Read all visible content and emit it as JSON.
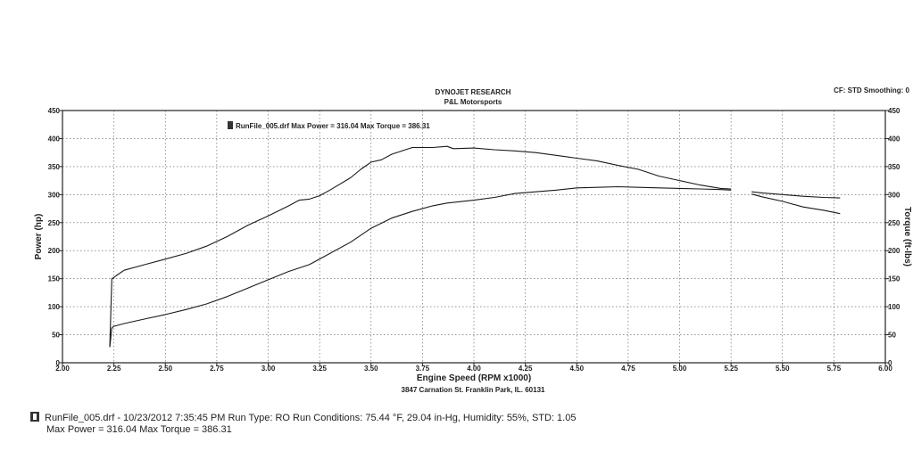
{
  "header": {
    "title": "DYNOJET RESEARCH",
    "subtitle": "P&L Motorsports",
    "cf_smoothing": "CF: STD  Smoothing: 0"
  },
  "address": "3847 Carnation St.  Franklin Park, IL.  60131",
  "footer": {
    "line1": "RunFile_005.drf - 10/23/2012 7:35:45 PM  Run Type: RO  Run Conditions: 75.44 °F, 29.04 in-Hg,  Humidity:  55%, STD: 1.05",
    "line2": "Max Power = 316.04  Max Torque = 386.31"
  },
  "chart_data": {
    "type": "line",
    "xlabel": "Engine Speed (RPM x1000)",
    "ylabel": "Power (hp)",
    "y2label": "Torque (ft-lbs)",
    "xlim": [
      2.0,
      6.0
    ],
    "ylim": [
      0,
      450
    ],
    "y2lim": [
      0,
      450
    ],
    "x_ticks": [
      "2.00",
      "2.25",
      "2.50",
      "2.75",
      "3.00",
      "3.25",
      "3.50",
      "3.75",
      "4.00",
      "4.25",
      "4.50",
      "4.75",
      "5.00",
      "5.25",
      "5.50",
      "5.75",
      "6.00"
    ],
    "y_ticks": [
      "0",
      "50",
      "100",
      "150",
      "200",
      "250",
      "300",
      "350",
      "400",
      "450"
    ],
    "grid": true,
    "legend": {
      "position": "top-left",
      "text": "RunFile_005.drf Max Power = 316.04     Max Torque = 386.31"
    },
    "series": [
      {
        "name": "Torque",
        "x": [
          2.23,
          2.24,
          2.25,
          2.26,
          2.3,
          2.4,
          2.5,
          2.6,
          2.7,
          2.8,
          2.9,
          3.0,
          3.1,
          3.15,
          3.2,
          3.25,
          3.3,
          3.4,
          3.45,
          3.5,
          3.55,
          3.6,
          3.7,
          3.8,
          3.87,
          3.9,
          4.0,
          4.1,
          4.2,
          4.3,
          4.4,
          4.5,
          4.6,
          4.7,
          4.8,
          4.9,
          5.0,
          5.1,
          5.2,
          5.25,
          5.35,
          5.4,
          5.5,
          5.6,
          5.7,
          5.78
        ],
        "values": [
          28,
          150,
          152,
          155,
          165,
          175,
          185,
          195,
          208,
          225,
          245,
          262,
          280,
          290,
          292,
          298,
          308,
          330,
          345,
          358,
          362,
          372,
          384,
          384,
          386,
          382,
          383,
          380,
          378,
          375,
          370,
          365,
          360,
          352,
          345,
          333,
          325,
          317,
          311,
          310,
          301,
          296,
          288,
          278,
          272,
          266
        ]
      },
      {
        "name": "Power",
        "x": [
          2.23,
          2.24,
          2.25,
          2.3,
          2.4,
          2.5,
          2.6,
          2.7,
          2.8,
          2.9,
          3.0,
          3.1,
          3.2,
          3.3,
          3.4,
          3.5,
          3.6,
          3.7,
          3.8,
          3.87,
          3.9,
          4.0,
          4.1,
          4.2,
          4.3,
          4.4,
          4.5,
          4.6,
          4.7,
          4.8,
          4.9,
          5.0,
          5.1,
          5.2,
          5.25,
          5.35,
          5.4,
          5.5,
          5.6,
          5.7,
          5.78
        ],
        "values": [
          28,
          62,
          65,
          70,
          78,
          86,
          95,
          105,
          118,
          133,
          148,
          163,
          175,
          195,
          215,
          240,
          258,
          270,
          280,
          285,
          286,
          290,
          295,
          302,
          305,
          308,
          312,
          313,
          314,
          313,
          312,
          311,
          310,
          309,
          308,
          305,
          303,
          300,
          297,
          295,
          294
        ]
      }
    ]
  }
}
